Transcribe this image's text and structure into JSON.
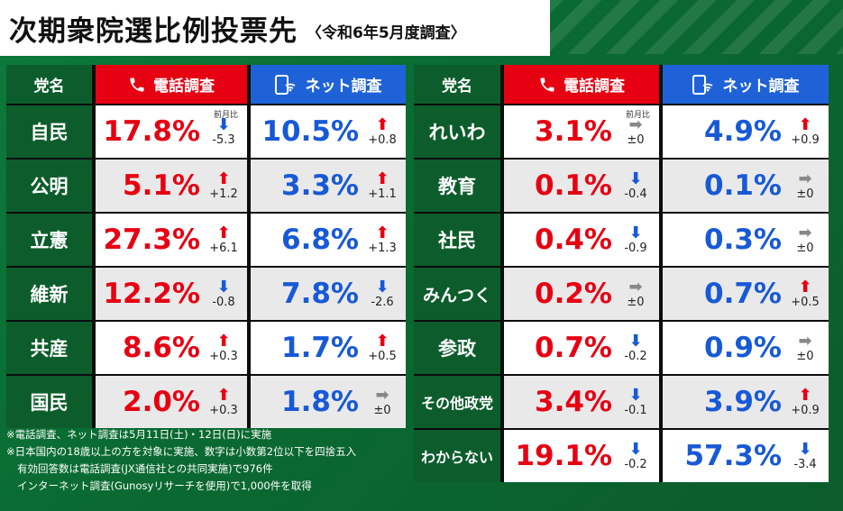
{
  "title": {
    "main": "次期衆院選比例投票先",
    "sub": "〈令和6年5月度調査〉"
  },
  "headers": {
    "party": "党名",
    "phone": "電話調査",
    "net": "ネット調査",
    "prev_month": "前月比"
  },
  "colors": {
    "phone": "#e60012",
    "net": "#1f62d8",
    "party_bg": "#0d5d2c",
    "up": "#e60012",
    "down": "#1759d6",
    "flat": "#888888"
  },
  "icons": {
    "phone": "phone-icon",
    "net": "smartphone-icon",
    "up": "arrow-up-icon",
    "down": "arrow-down-icon",
    "flat": "arrow-right-icon"
  },
  "chart_data": {
    "type": "table",
    "columns": [
      "党名",
      "電話調査",
      "前月比",
      "ネット調査",
      "前月比"
    ],
    "left": [
      {
        "party": "自民",
        "phone": "17.8%",
        "phone_dir": "down",
        "phone_chg": "-5.3",
        "net": "10.5%",
        "net_dir": "up",
        "net_chg": "+0.8"
      },
      {
        "party": "公明",
        "phone": "5.1%",
        "phone_dir": "up",
        "phone_chg": "+1.2",
        "net": "3.3%",
        "net_dir": "up",
        "net_chg": "+1.1"
      },
      {
        "party": "立憲",
        "phone": "27.3%",
        "phone_dir": "up",
        "phone_chg": "+6.1",
        "net": "6.8%",
        "net_dir": "up",
        "net_chg": "+1.3"
      },
      {
        "party": "維新",
        "phone": "12.2%",
        "phone_dir": "down",
        "phone_chg": "-0.8",
        "net": "7.8%",
        "net_dir": "down",
        "net_chg": "-2.6"
      },
      {
        "party": "共産",
        "phone": "8.6%",
        "phone_dir": "up",
        "phone_chg": "+0.3",
        "net": "1.7%",
        "net_dir": "up",
        "net_chg": "+0.5"
      },
      {
        "party": "国民",
        "phone": "2.0%",
        "phone_dir": "up",
        "phone_chg": "+0.3",
        "net": "1.8%",
        "net_dir": "flat",
        "net_chg": "±0"
      }
    ],
    "right": [
      {
        "party": "れいわ",
        "phone": "3.1%",
        "phone_dir": "flat",
        "phone_chg": "±0",
        "net": "4.9%",
        "net_dir": "up",
        "net_chg": "+0.9"
      },
      {
        "party": "教育",
        "phone": "0.1%",
        "phone_dir": "down",
        "phone_chg": "-0.4",
        "net": "0.1%",
        "net_dir": "flat",
        "net_chg": "±0"
      },
      {
        "party": "社民",
        "phone": "0.4%",
        "phone_dir": "down",
        "phone_chg": "-0.9",
        "net": "0.3%",
        "net_dir": "flat",
        "net_chg": "±0"
      },
      {
        "party": "みんつく",
        "phone": "0.2%",
        "phone_dir": "flat",
        "phone_chg": "±0",
        "net": "0.7%",
        "net_dir": "up",
        "net_chg": "+0.5"
      },
      {
        "party": "参政",
        "phone": "0.7%",
        "phone_dir": "down",
        "phone_chg": "-0.2",
        "net": "0.9%",
        "net_dir": "flat",
        "net_chg": "±0"
      },
      {
        "party": "その他政党",
        "phone": "3.4%",
        "phone_dir": "down",
        "phone_chg": "-0.1",
        "net": "3.9%",
        "net_dir": "up",
        "net_chg": "+0.9"
      },
      {
        "party": "わからない",
        "phone": "19.1%",
        "phone_dir": "down",
        "phone_chg": "-0.2",
        "net": "57.3%",
        "net_dir": "down",
        "net_chg": "-3.4"
      }
    ]
  },
  "notes": [
    "※電話調査、ネット調査は5月11日(土)・12日(日)に実施",
    "※日本国内の18歳以上の方を対象に実施、数字は小数第2位以下を四捨五入",
    "有効回答数は電話調査(JX通信社との共同実施)で976件",
    "インターネット調査(Gunosyリサーチを使用)で1,000件を取得"
  ]
}
